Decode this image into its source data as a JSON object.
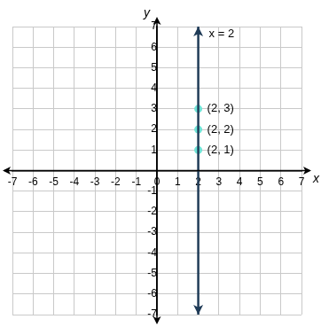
{
  "chart_data": {
    "type": "line",
    "xlabel": "x",
    "ylabel": "y",
    "xlim": [
      -7,
      7
    ],
    "ylim": [
      -7,
      7
    ],
    "xticks": [
      -7,
      -6,
      -5,
      -4,
      -3,
      -2,
      -1,
      0,
      1,
      2,
      3,
      4,
      5,
      6,
      7
    ],
    "yticks": [
      -7,
      -6,
      -5,
      -4,
      -3,
      -2,
      -1,
      1,
      2,
      3,
      4,
      5,
      6,
      7
    ],
    "grid": true,
    "series": [
      {
        "name": "x = 2",
        "type": "line",
        "color": "#1f3b57",
        "line_style": "solid",
        "x": [
          2,
          2
        ],
        "values": [
          -7,
          7
        ]
      },
      {
        "type": "scatter",
        "color": "#6fe3d6",
        "marker": "circle",
        "data_labels": true,
        "x": [
          2,
          2,
          2
        ],
        "values": [
          1,
          2,
          3
        ],
        "value_labels": [
          "(2, 1)",
          "(2, 2)",
          "(2, 3)"
        ]
      }
    ]
  }
}
